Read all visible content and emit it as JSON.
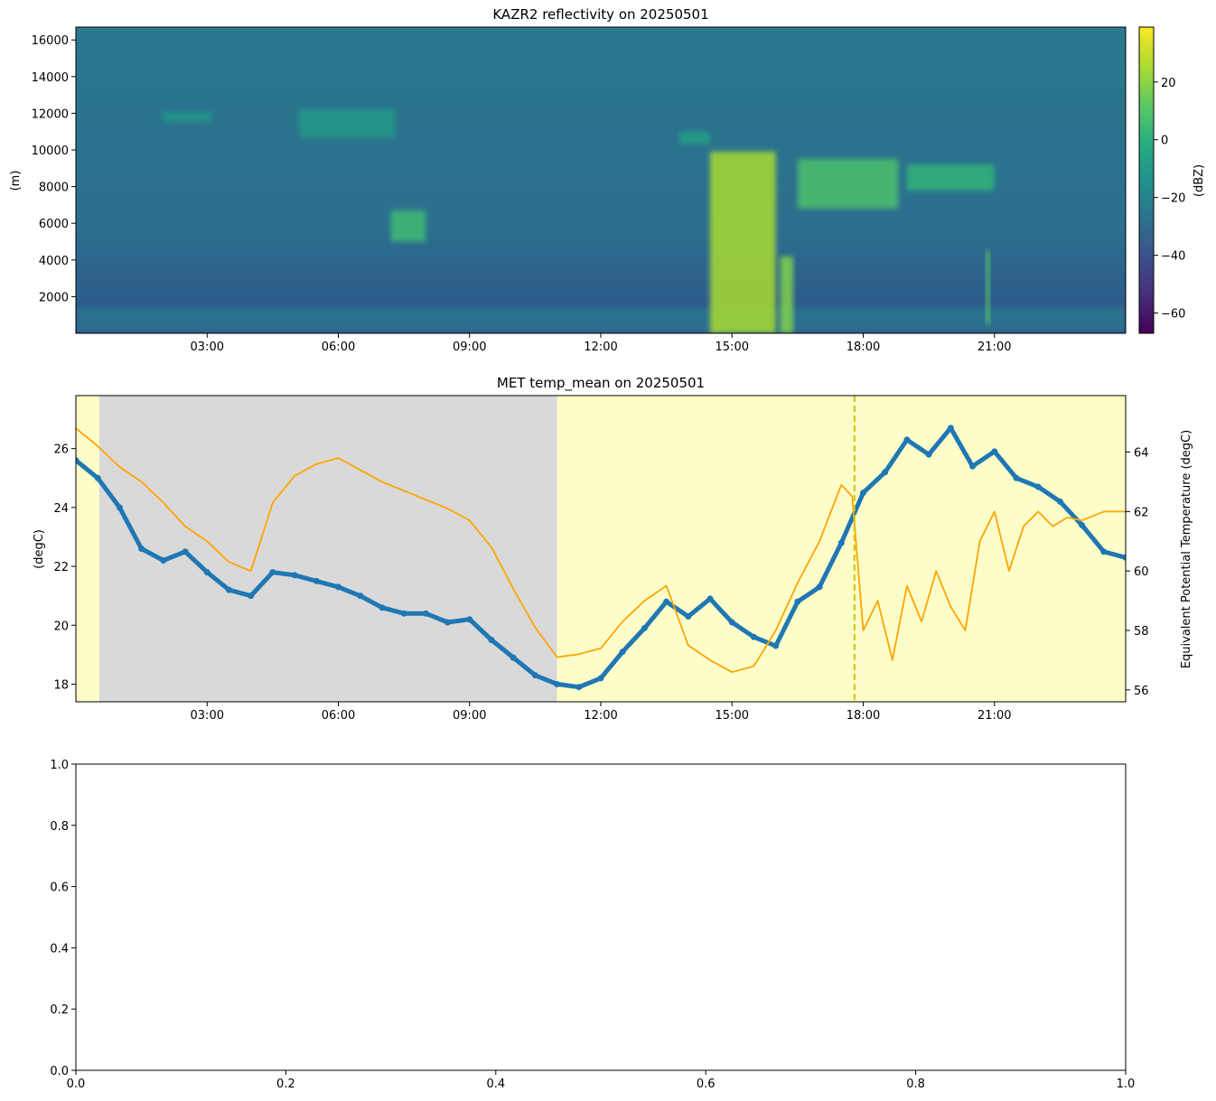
{
  "chart_data": [
    {
      "type": "heatmap",
      "title": "KAZR2 reflectivity on 20250501",
      "xlabel": "",
      "ylabel": "(m)",
      "colorbar_label": "(dBZ)",
      "colormap": "viridis",
      "xlim": [
        "00:00",
        "24:00"
      ],
      "ylim": [
        0,
        16700
      ],
      "xticks": [
        "03:00",
        "06:00",
        "09:00",
        "12:00",
        "15:00",
        "18:00",
        "21:00"
      ],
      "yticks": [
        2000,
        4000,
        6000,
        8000,
        10000,
        12000,
        14000,
        16000
      ],
      "clim": [
        -67,
        39
      ],
      "colorbar_ticks": [
        20,
        0,
        -20,
        -40,
        -60
      ],
      "background_dbz": -20,
      "features": [
        {
          "desc": "surface clutter",
          "t0": 0.0,
          "t1": 24.0,
          "z0": 0,
          "z1": 1400,
          "dbz": -25
        },
        {
          "desc": "cirrus",
          "t0": 5.1,
          "t1": 7.3,
          "z0": 10700,
          "z1": 12200,
          "dbz": -10
        },
        {
          "desc": "cirrus",
          "t0": 2.0,
          "t1": 3.1,
          "z0": 11500,
          "z1": 12100,
          "dbz": -12
        },
        {
          "desc": "mid cloud",
          "t0": 7.2,
          "t1": 8.0,
          "z0": 5000,
          "z1": 6700,
          "dbz": 5
        },
        {
          "desc": "cirrus",
          "t0": 13.8,
          "t1": 14.5,
          "z0": 10300,
          "z1": 11000,
          "dbz": -8
        },
        {
          "desc": "convection",
          "t0": 14.5,
          "t1": 16.0,
          "z0": 0,
          "z1": 9900,
          "dbz": 25
        },
        {
          "desc": "convection",
          "t0": 16.1,
          "t1": 16.4,
          "z0": 0,
          "z1": 4200,
          "dbz": 18
        },
        {
          "desc": "anvil",
          "t0": 16.5,
          "t1": 18.8,
          "z0": 6800,
          "z1": 9500,
          "dbz": 8
        },
        {
          "desc": "anvil",
          "t0": 19.0,
          "t1": 21.0,
          "z0": 7800,
          "z1": 9200,
          "dbz": 2
        },
        {
          "desc": "virga",
          "t0": 20.8,
          "t1": 20.9,
          "z0": 500,
          "z1": 4500,
          "dbz": 10
        }
      ]
    },
    {
      "type": "line",
      "title": "MET temp_mean on 20250501",
      "xlabel": "",
      "ylabel": "(degC)",
      "y2label": "Equivalent Potential Temperature (degC)",
      "xlim": [
        "00:00",
        "24:00"
      ],
      "ylim": [
        17.4,
        27.8
      ],
      "y2lim": [
        55.6,
        65.9
      ],
      "xticks": [
        "03:00",
        "06:00",
        "09:00",
        "12:00",
        "15:00",
        "18:00",
        "21:00"
      ],
      "yticks": [
        18,
        20,
        22,
        24,
        26
      ],
      "y2ticks": [
        56,
        58,
        60,
        62,
        64
      ],
      "shading": [
        {
          "start": "00:00",
          "end": "00:32",
          "color": "#fdfdc9"
        },
        {
          "start": "00:32",
          "end": "11:00",
          "color": "#d9d9d9"
        },
        {
          "start": "11:00",
          "end": "24:00",
          "color": "#fdfdc9"
        }
      ],
      "vline": {
        "time": "17:48",
        "color": "#c8c800",
        "style": "dashed"
      },
      "series": [
        {
          "axis": "left",
          "color": "#1f77b4",
          "marker": "dot",
          "x": [
            "00:00",
            "00:30",
            "01:00",
            "01:30",
            "02:00",
            "02:30",
            "03:00",
            "03:30",
            "04:00",
            "04:30",
            "05:00",
            "05:30",
            "06:00",
            "06:30",
            "07:00",
            "07:30",
            "08:00",
            "08:30",
            "09:00",
            "09:30",
            "10:00",
            "10:30",
            "11:00",
            "11:30",
            "12:00",
            "12:30",
            "13:00",
            "13:30",
            "14:00",
            "14:30",
            "15:00",
            "15:30",
            "16:00",
            "16:30",
            "17:00",
            "17:30",
            "18:00",
            "18:30",
            "19:00",
            "19:30",
            "20:00",
            "20:30",
            "21:00",
            "21:30",
            "22:00",
            "22:30",
            "23:00",
            "23:30",
            "24:00"
          ],
          "y": [
            25.6,
            25.0,
            24.0,
            22.6,
            22.2,
            22.5,
            21.8,
            21.2,
            21.0,
            21.8,
            21.7,
            21.5,
            21.3,
            21.0,
            20.6,
            20.4,
            20.4,
            20.1,
            20.2,
            19.5,
            18.9,
            18.3,
            18.0,
            17.9,
            18.2,
            19.1,
            19.9,
            20.8,
            20.3,
            20.9,
            20.1,
            19.6,
            19.3,
            20.8,
            21.3,
            22.8,
            24.5,
            25.2,
            26.3,
            25.8,
            26.7,
            25.4,
            25.9,
            25.0,
            24.7,
            24.2,
            23.4,
            22.5,
            22.3
          ]
        },
        {
          "axis": "right",
          "color": "#ffa500",
          "marker": "none",
          "x": [
            "00:00",
            "00:30",
            "01:00",
            "01:30",
            "02:00",
            "02:30",
            "03:00",
            "03:30",
            "04:00",
            "04:30",
            "05:00",
            "05:30",
            "06:00",
            "06:30",
            "07:00",
            "07:30",
            "08:00",
            "08:30",
            "09:00",
            "09:30",
            "10:00",
            "10:30",
            "11:00",
            "11:30",
            "12:00",
            "12:30",
            "13:00",
            "13:30",
            "14:00",
            "14:30",
            "15:00",
            "15:30",
            "16:00",
            "16:30",
            "17:00",
            "17:30",
            "17:45",
            "18:00",
            "18:20",
            "18:40",
            "19:00",
            "19:20",
            "19:40",
            "20:00",
            "20:20",
            "20:40",
            "21:00",
            "21:20",
            "21:40",
            "22:00",
            "22:20",
            "22:40",
            "23:00",
            "23:30",
            "24:00"
          ],
          "y": [
            64.8,
            64.2,
            63.5,
            63.0,
            62.3,
            61.5,
            61.0,
            60.3,
            60.0,
            62.3,
            63.2,
            63.6,
            63.8,
            63.4,
            63.0,
            62.7,
            62.4,
            62.1,
            61.7,
            60.8,
            59.4,
            58.1,
            57.1,
            57.2,
            57.4,
            58.3,
            59.0,
            59.5,
            57.5,
            57.0,
            56.6,
            56.8,
            58.0,
            59.6,
            61.0,
            62.9,
            62.5,
            58.0,
            59.0,
            57.0,
            59.5,
            58.3,
            60.0,
            58.8,
            58.0,
            61.0,
            62.0,
            60.0,
            61.5,
            62.0,
            61.5,
            61.8,
            61.7,
            62.0,
            62.0
          ]
        }
      ]
    },
    {
      "type": "line",
      "title": "",
      "xlim": [
        0.0,
        1.0
      ],
      "ylim": [
        0.0,
        1.0
      ],
      "xticks": [
        "0.0",
        "0.2",
        "0.4",
        "0.6",
        "0.8",
        "1.0"
      ],
      "yticks": [
        "0.0",
        "0.2",
        "0.4",
        "0.6",
        "0.8",
        "1.0"
      ],
      "series": []
    }
  ]
}
